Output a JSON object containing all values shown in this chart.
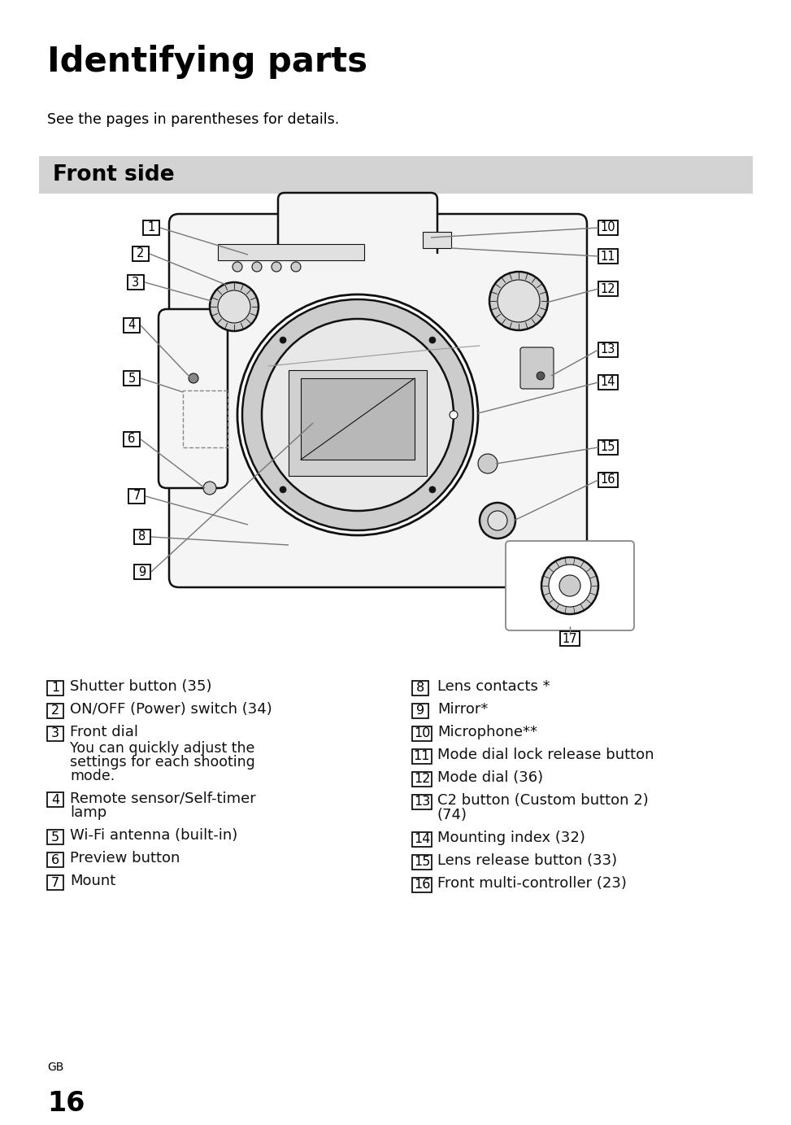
{
  "title": "Identifying parts",
  "subtitle": "See the pages in parentheses for details.",
  "section_header": "Front side",
  "section_header_bg": "#d3d3d3",
  "page_bg": "#ffffff",
  "title_fontsize": 30,
  "subtitle_fontsize": 12.5,
  "section_fontsize": 19,
  "body_fontsize": 13,
  "left_items": [
    {
      "num": "1",
      "text": "Shutter button (35)",
      "bold": false,
      "extra": null
    },
    {
      "num": "2",
      "text": "ON/OFF (Power) switch (34)",
      "bold": false,
      "extra": null
    },
    {
      "num": "3",
      "text": "Front dial",
      "bold": false,
      "extra": "You can quickly adjust the\nsettings for each shooting\nmode."
    },
    {
      "num": "4",
      "text": "Remote sensor/Self-timer\nlamp",
      "bold": false,
      "extra": null
    },
    {
      "num": "5",
      "text": "Wi-Fi antenna (built-in)",
      "bold": false,
      "extra": null
    },
    {
      "num": "6",
      "text": "Preview button",
      "bold": false,
      "extra": null
    },
    {
      "num": "7",
      "text": "Mount",
      "bold": false,
      "extra": null
    }
  ],
  "right_items": [
    {
      "num": "8",
      "text": "Lens contacts *",
      "bold": false,
      "extra": null
    },
    {
      "num": "9",
      "text": "Mirror*",
      "bold": false,
      "extra": null
    },
    {
      "num": "10",
      "text": "Microphone**",
      "bold": false,
      "extra": null
    },
    {
      "num": "11",
      "text": "Mode dial lock release button",
      "bold": false,
      "extra": null
    },
    {
      "num": "12",
      "text": "Mode dial (36)",
      "bold": false,
      "extra": null
    },
    {
      "num": "13",
      "text": "C2 button (Custom button 2)\n(74)",
      "bold": false,
      "extra": null
    },
    {
      "num": "14",
      "text": "Mounting index (32)",
      "bold": false,
      "extra": null
    },
    {
      "num": "15",
      "text": "Lens release button (33)",
      "bold": false,
      "extra": null
    },
    {
      "num": "16",
      "text": "Front multi-controller (23)",
      "bold": false,
      "extra": null
    }
  ],
  "footer_label": "GB",
  "page_number": "16"
}
